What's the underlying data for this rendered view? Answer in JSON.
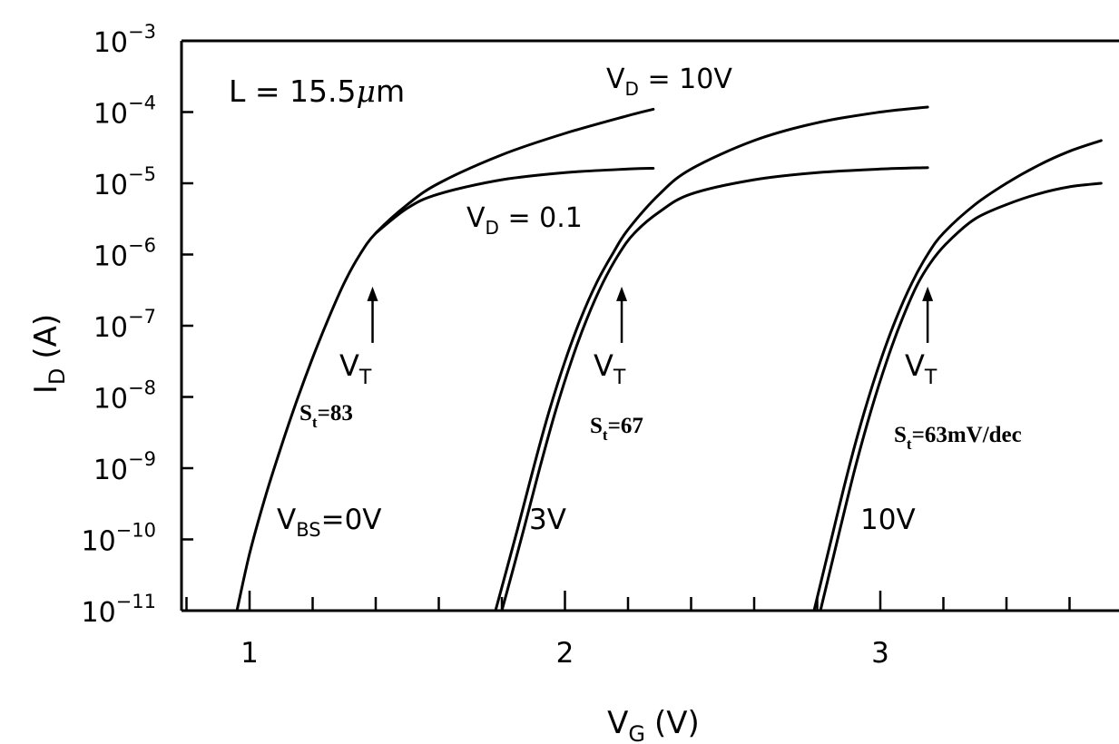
{
  "chart_data": {
    "type": "line",
    "xlabel_main": "V",
    "xlabel_sub": "G",
    "xlabel_unit": "(V)",
    "ylabel_main": "I",
    "ylabel_sub": "D",
    "ylabel_unit": "(A)",
    "xlim": [
      0.75,
      3.85
    ],
    "x_ticks": [
      1,
      2,
      3
    ],
    "x_tick_labels": [
      "1",
      "2",
      "3"
    ],
    "x_minor_step": 0.1,
    "y_log_exponents": [
      -3,
      -4,
      -5,
      -6,
      -7,
      -8,
      -9,
      -10,
      -11
    ],
    "y_tick_base": "10",
    "y_tick_exponent_labels": [
      "−3",
      "−4",
      "−5",
      "−6",
      "−7",
      "−8",
      "−9",
      "−10",
      "−11"
    ],
    "ylim_exp": [
      -11,
      -3
    ],
    "y_scale": "log",
    "series": [
      {
        "name": "",
        "vbs": 0,
        "vd": 10,
        "x": [
          0.96,
          1.0,
          1.05,
          1.1,
          1.15,
          1.2,
          1.25,
          1.3,
          1.35,
          1.4,
          1.5,
          1.6,
          1.8,
          2.0,
          2.2,
          2.28
        ],
        "log_y": [
          -11,
          -10.2,
          -9.4,
          -8.7,
          -8.05,
          -7.45,
          -6.9,
          -6.4,
          -6.0,
          -5.7,
          -5.3,
          -5.0,
          -4.6,
          -4.3,
          -4.05,
          -3.96
        ]
      },
      {
        "name": "",
        "vbs": 0,
        "vd": 0.1,
        "x": [
          1.4,
          1.5,
          1.6,
          1.8,
          2.0,
          2.2,
          2.28
        ],
        "log_y": [
          -5.7,
          -5.35,
          -5.15,
          -4.95,
          -4.85,
          -4.8,
          -4.79
        ]
      },
      {
        "name": "",
        "vbs": 3,
        "vd": 10,
        "x": [
          1.78,
          1.85,
          1.9,
          1.95,
          2.0,
          2.05,
          2.1,
          2.15,
          2.2,
          2.3,
          2.4,
          2.6,
          2.8,
          3.0,
          3.15
        ],
        "log_y": [
          -11,
          -9.85,
          -9.0,
          -8.2,
          -7.5,
          -6.9,
          -6.4,
          -6.0,
          -5.65,
          -5.15,
          -4.8,
          -4.4,
          -4.15,
          -4.0,
          -3.93
        ]
      },
      {
        "name": "",
        "vbs": 3,
        "vd": 0.1,
        "x": [
          1.8,
          1.87,
          1.92,
          1.97,
          2.02,
          2.07,
          2.12,
          2.17,
          2.22,
          2.3,
          2.4,
          2.6,
          2.8,
          3.0,
          3.15
        ],
        "log_y": [
          -11,
          -9.85,
          -9.0,
          -8.2,
          -7.5,
          -6.9,
          -6.4,
          -6.0,
          -5.7,
          -5.4,
          -5.15,
          -4.95,
          -4.85,
          -4.8,
          -4.78
        ]
      },
      {
        "name": "",
        "vbs": 10,
        "vd": 10,
        "x": [
          2.79,
          2.85,
          2.9,
          2.95,
          3.0,
          3.05,
          3.1,
          3.15,
          3.2,
          3.3,
          3.4,
          3.5,
          3.6,
          3.7,
          3.85
        ],
        "log_y": [
          -11,
          -9.9,
          -9.0,
          -8.2,
          -7.5,
          -6.9,
          -6.4,
          -6.0,
          -5.7,
          -5.3,
          -5.0,
          -4.75,
          -4.55,
          -4.4,
          -4.2
        ]
      },
      {
        "name": "",
        "vbs": 10,
        "vd": 0.1,
        "x": [
          2.81,
          2.87,
          2.92,
          2.97,
          3.02,
          3.07,
          3.12,
          3.17,
          3.22,
          3.3,
          3.4,
          3.5,
          3.6,
          3.7,
          3.85
        ],
        "log_y": [
          -11,
          -9.9,
          -9.0,
          -8.2,
          -7.5,
          -6.9,
          -6.4,
          -6.05,
          -5.8,
          -5.5,
          -5.3,
          -5.15,
          -5.05,
          -5.0,
          -4.96
        ]
      }
    ],
    "annotations": {
      "length": {
        "text": "L = 15.5",
        "unit_mu": "μ",
        "unit_m": "m"
      },
      "vd_high": {
        "main": "V",
        "sub": "D",
        "rest": " = 10V"
      },
      "vd_low": {
        "main": "V",
        "sub": "D",
        "rest": " = 0.1"
      },
      "vbs": {
        "main": "V",
        "sub": "BS",
        "rest": "=0V"
      },
      "vbs_3": "3V",
      "vbs_10": "10V",
      "vt": [
        {
          "main": "V",
          "sub": "T",
          "x": 1.39,
          "log_y": -6.4
        },
        {
          "main": "V",
          "sub": "T",
          "x": 2.18,
          "log_y": -6.4
        },
        {
          "main": "V",
          "sub": "T",
          "x": 3.15,
          "log_y": -6.4
        }
      ],
      "st": [
        {
          "main": "S",
          "sub": "t",
          "rest": "=83"
        },
        {
          "main": "S",
          "sub": "t",
          "rest": "=67"
        },
        {
          "main": "S",
          "sub": "t",
          "rest": "=63mV/dec"
        }
      ]
    }
  }
}
